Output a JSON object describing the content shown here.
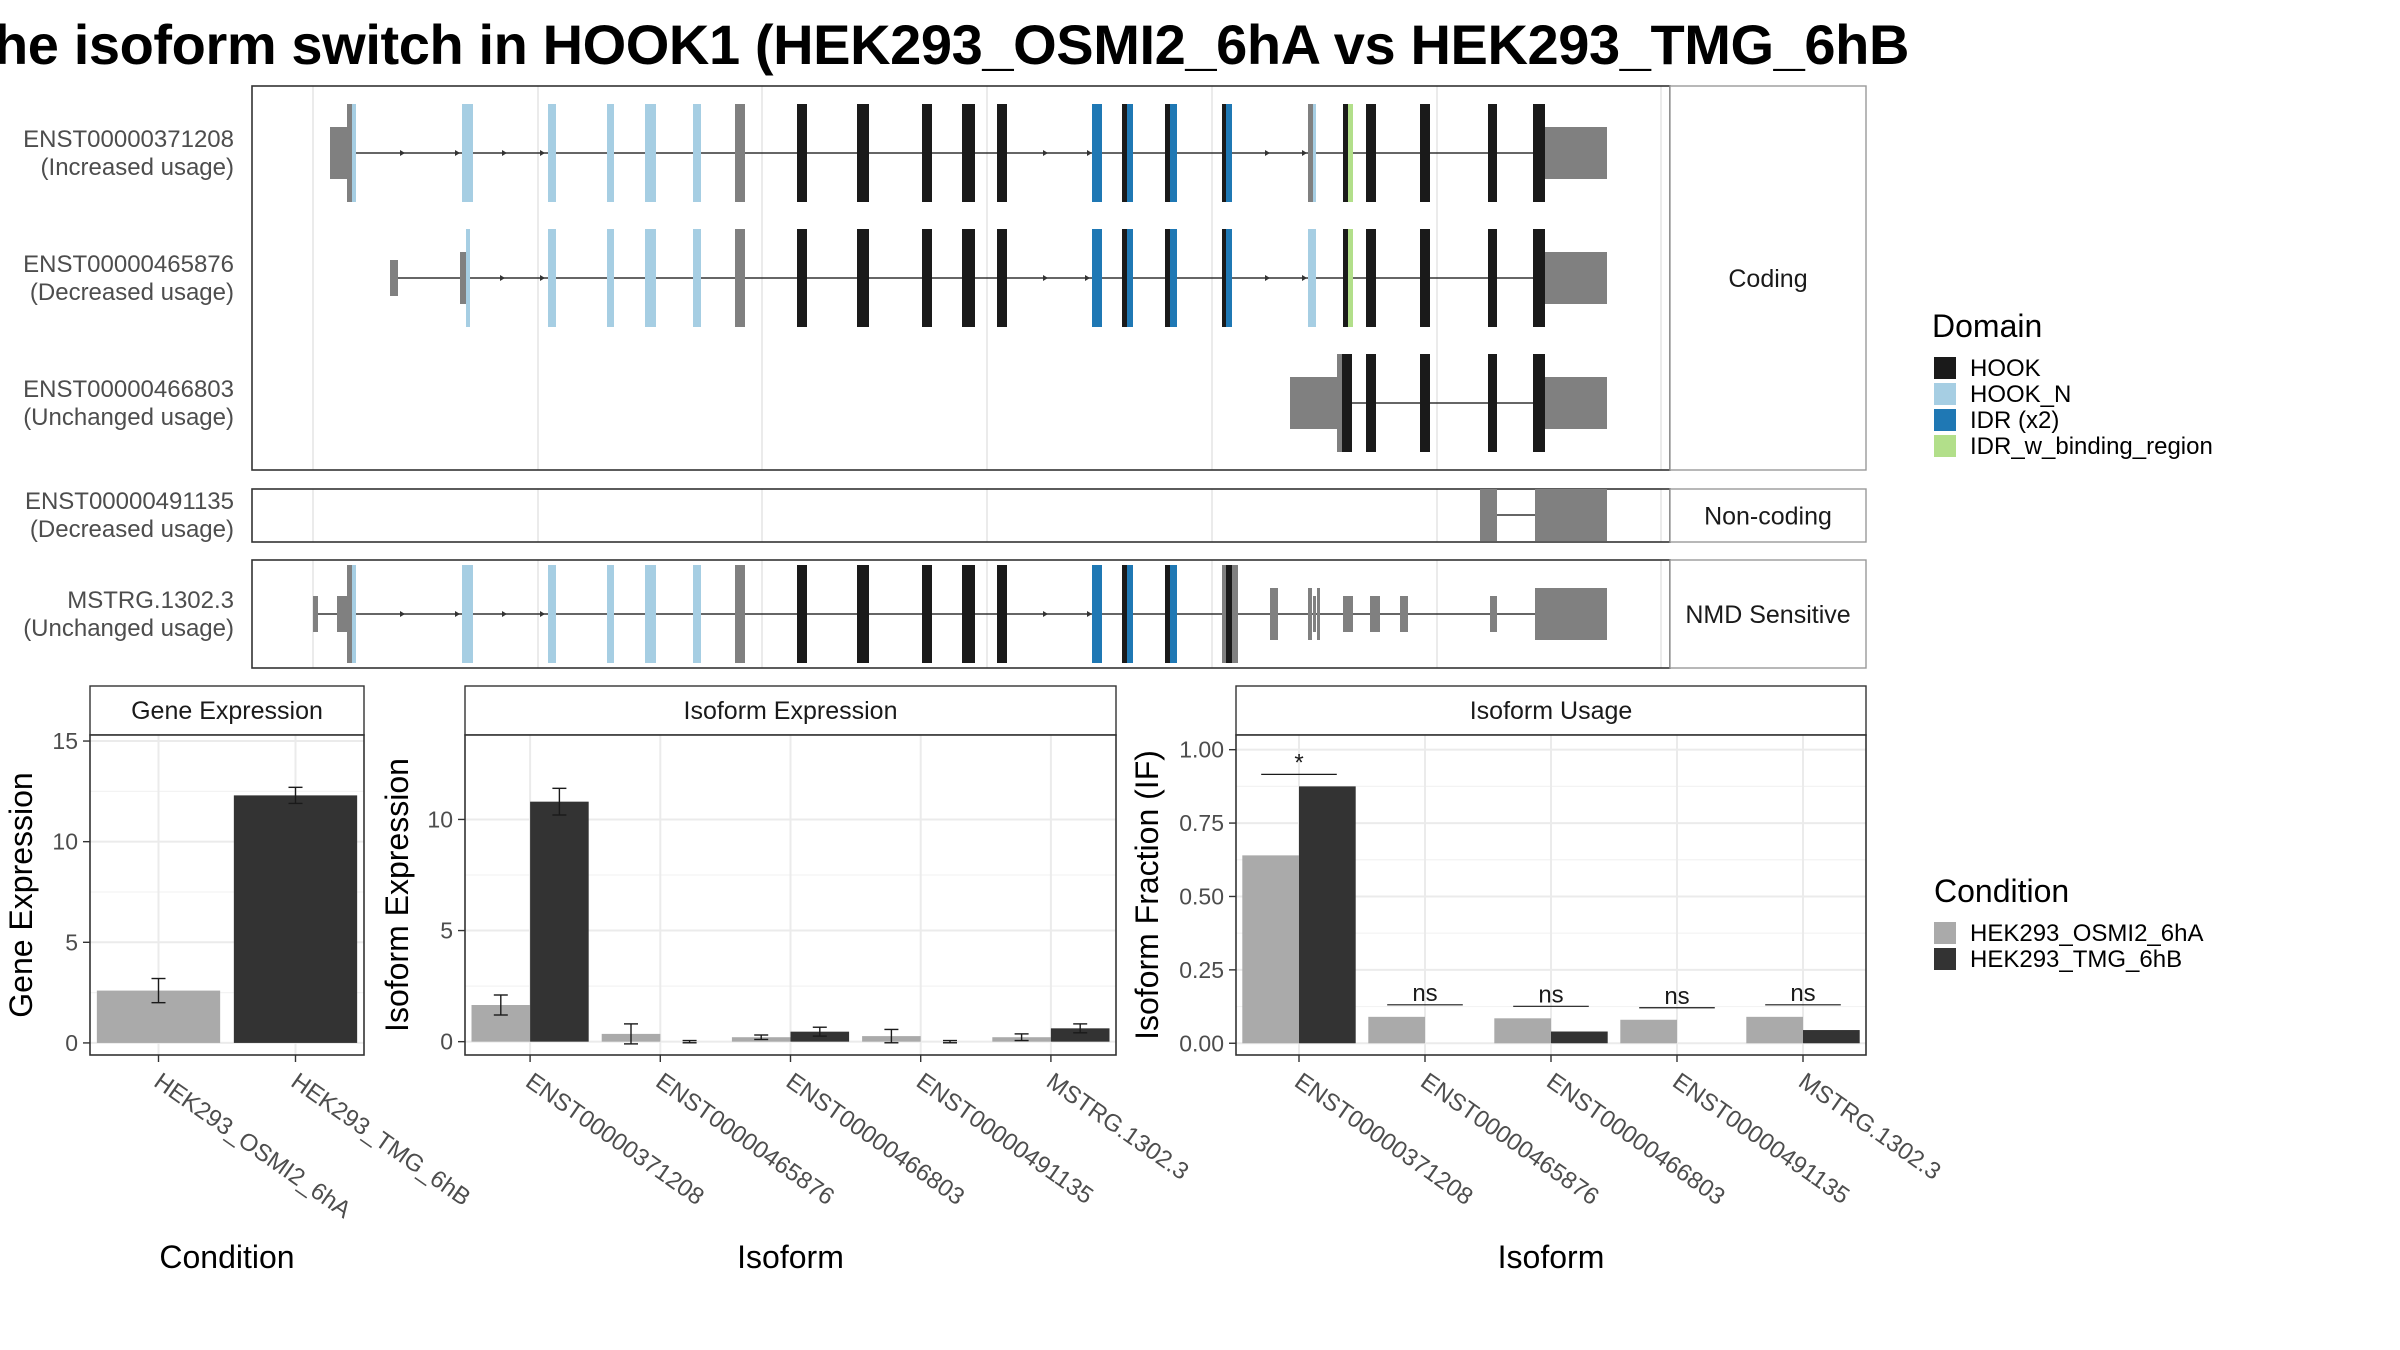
{
  "title": "he isoform switch in HOOK1 (HEK293_OSMI2_6hA vs HEK293_TMG_6hB",
  "chart_data": [
    {
      "type": "gene-structure",
      "panel_names": [
        "Coding",
        "Non-coding",
        "NMD Sensitive"
      ],
      "transcripts": [
        {
          "id": "ENST00000371208",
          "usage": "(Increased usage)",
          "group": "Coding"
        },
        {
          "id": "ENST00000465876",
          "usage": "(Decreased usage)",
          "group": "Coding"
        },
        {
          "id": "ENST00000466803",
          "usage": "(Unchanged usage)",
          "group": "Coding"
        },
        {
          "id": "ENST00000491135",
          "usage": "(Decreased usage)",
          "group": "Non-coding"
        },
        {
          "id": "MSTRG.1302.3",
          "usage": "(Unchanged usage)",
          "group": "NMD Sensitive"
        }
      ],
      "legend": {
        "title": "Domain",
        "items": [
          {
            "label": "HOOK",
            "color": "#1a1a1a"
          },
          {
            "label": "HOOK_N",
            "color": "#a6cee3"
          },
          {
            "label": "IDR (x2)",
            "color": "#1f78b4"
          },
          {
            "label": "IDR_w_binding_region",
            "color": "#b2df8a"
          }
        ]
      },
      "colors": {
        "utr": "#808080",
        "intron": "#333333",
        "unannotated_cds": "#808080"
      }
    },
    {
      "type": "bar",
      "title": "Gene Expression",
      "xlabel": "Condition",
      "ylabel": "Gene Expression",
      "categories": [
        "HEK293_OSMI2_6hA",
        "HEK293_TMG_6hB"
      ],
      "values": [
        2.6,
        12.3
      ],
      "errors": [
        0.6,
        0.4
      ],
      "colors": [
        "#aaaaaa",
        "#333333"
      ],
      "yticks": [
        "0",
        "5",
        "10",
        "15"
      ],
      "ylim": [
        -0.6,
        15.3
      ],
      "grid": true
    },
    {
      "type": "bar",
      "title": "Isoform Expression",
      "xlabel": "Isoform",
      "ylabel": "Isoform Expression",
      "categories": [
        "ENST00000371208",
        "ENST00000465876",
        "ENST00000466803",
        "ENST00000491135",
        "MSTRG.1302.3"
      ],
      "series": [
        {
          "name": "HEK293_OSMI2_6hA",
          "values": [
            1.65,
            0.35,
            0.2,
            0.25,
            0.2
          ],
          "errors": [
            0.45,
            0.45,
            0.1,
            0.3,
            0.15
          ]
        },
        {
          "name": "HEK293_TMG_6hB",
          "values": [
            10.8,
            0.0,
            0.45,
            0.0,
            0.6
          ],
          "errors": [
            0.6,
            0.05,
            0.2,
            0.05,
            0.2
          ]
        }
      ],
      "yticks": [
        "0",
        "5",
        "10"
      ],
      "ylim": [
        -0.6,
        13.8
      ],
      "grid": true
    },
    {
      "type": "bar",
      "title": "Isoform Usage",
      "xlabel": "Isoform",
      "ylabel": "Isoform Fraction (IF)",
      "categories": [
        "ENST00000371208",
        "ENST00000465876",
        "ENST00000466803",
        "ENST00000491135",
        "MSTRG.1302.3"
      ],
      "series": [
        {
          "name": "HEK293_OSMI2_6hA",
          "values": [
            0.64,
            0.09,
            0.085,
            0.08,
            0.09
          ]
        },
        {
          "name": "HEK293_TMG_6hB",
          "values": [
            0.875,
            0.0,
            0.04,
            0.0,
            0.045
          ]
        }
      ],
      "significance": [
        "*",
        "ns",
        "ns",
        "ns",
        "ns"
      ],
      "yticks": [
        "0.00",
        "0.25",
        "0.50",
        "0.75",
        "1.00"
      ],
      "ylim": [
        -0.04,
        1.05
      ],
      "grid": true
    }
  ],
  "condition_legend": {
    "title": "Condition",
    "items": [
      {
        "label": "HEK293_OSMI2_6hA",
        "color": "#aaaaaa"
      },
      {
        "label": "HEK293_TMG_6hB",
        "color": "#333333"
      }
    ]
  }
}
